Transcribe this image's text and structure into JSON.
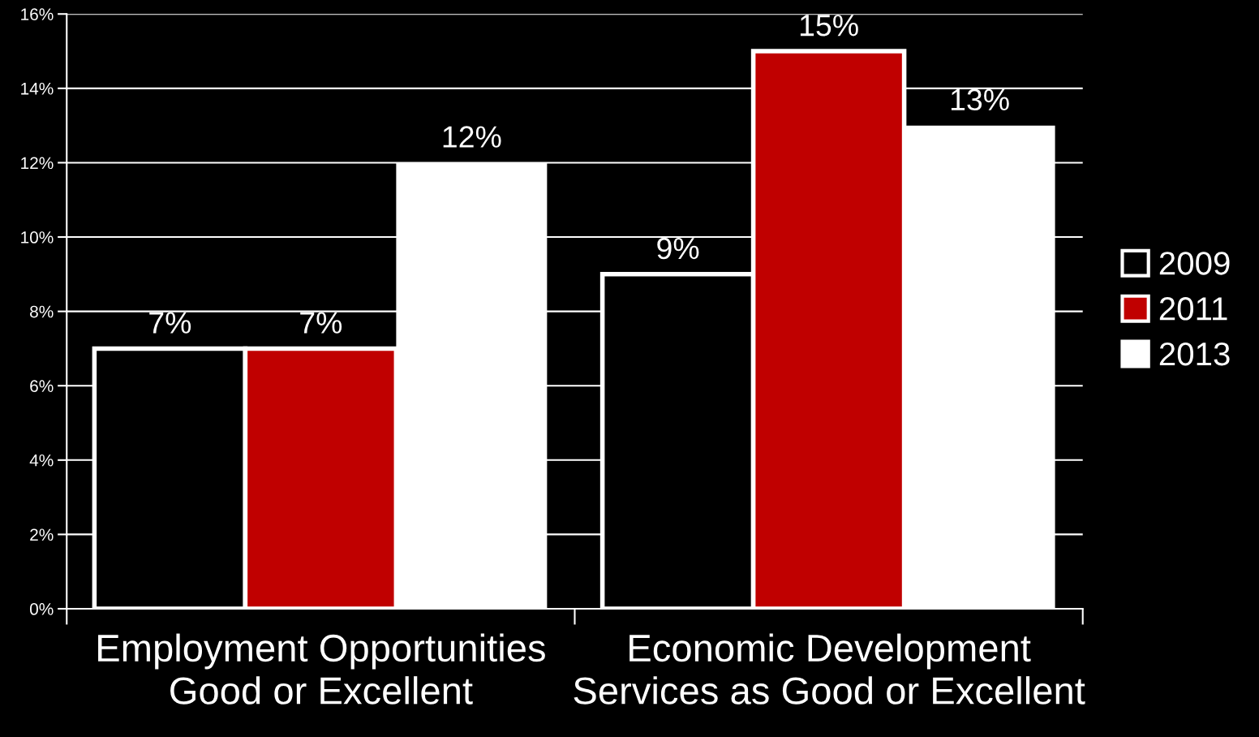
{
  "chart_data": {
    "type": "bar",
    "categories": [
      "Employment Opportunities\nGood or Excellent",
      "Economic Development\nServices as Good or Excellent"
    ],
    "series": [
      {
        "name": "2009",
        "color": "#000000",
        "values": [
          7,
          9
        ],
        "value_labels": [
          "7%",
          "9%"
        ]
      },
      {
        "name": "2011",
        "color": "#c00000",
        "values": [
          7,
          15
        ],
        "value_labels": [
          "7%",
          "15%"
        ]
      },
      {
        "name": "2013",
        "color": "#ffffff",
        "values": [
          12,
          13
        ],
        "value_labels": [
          "12%",
          "13%"
        ]
      }
    ],
    "ylim": [
      0,
      16
    ],
    "yticks": [
      {
        "value": 0,
        "label": "0%"
      },
      {
        "value": 2,
        "label": "2%"
      },
      {
        "value": 4,
        "label": "4%"
      },
      {
        "value": 6,
        "label": "6%"
      },
      {
        "value": 8,
        "label": "8%"
      },
      {
        "value": 10,
        "label": "10%"
      },
      {
        "value": 12,
        "label": "12%"
      },
      {
        "value": 14,
        "label": "14%"
      },
      {
        "value": 16,
        "label": "16%"
      }
    ],
    "grid": "y",
    "legend": "right"
  }
}
